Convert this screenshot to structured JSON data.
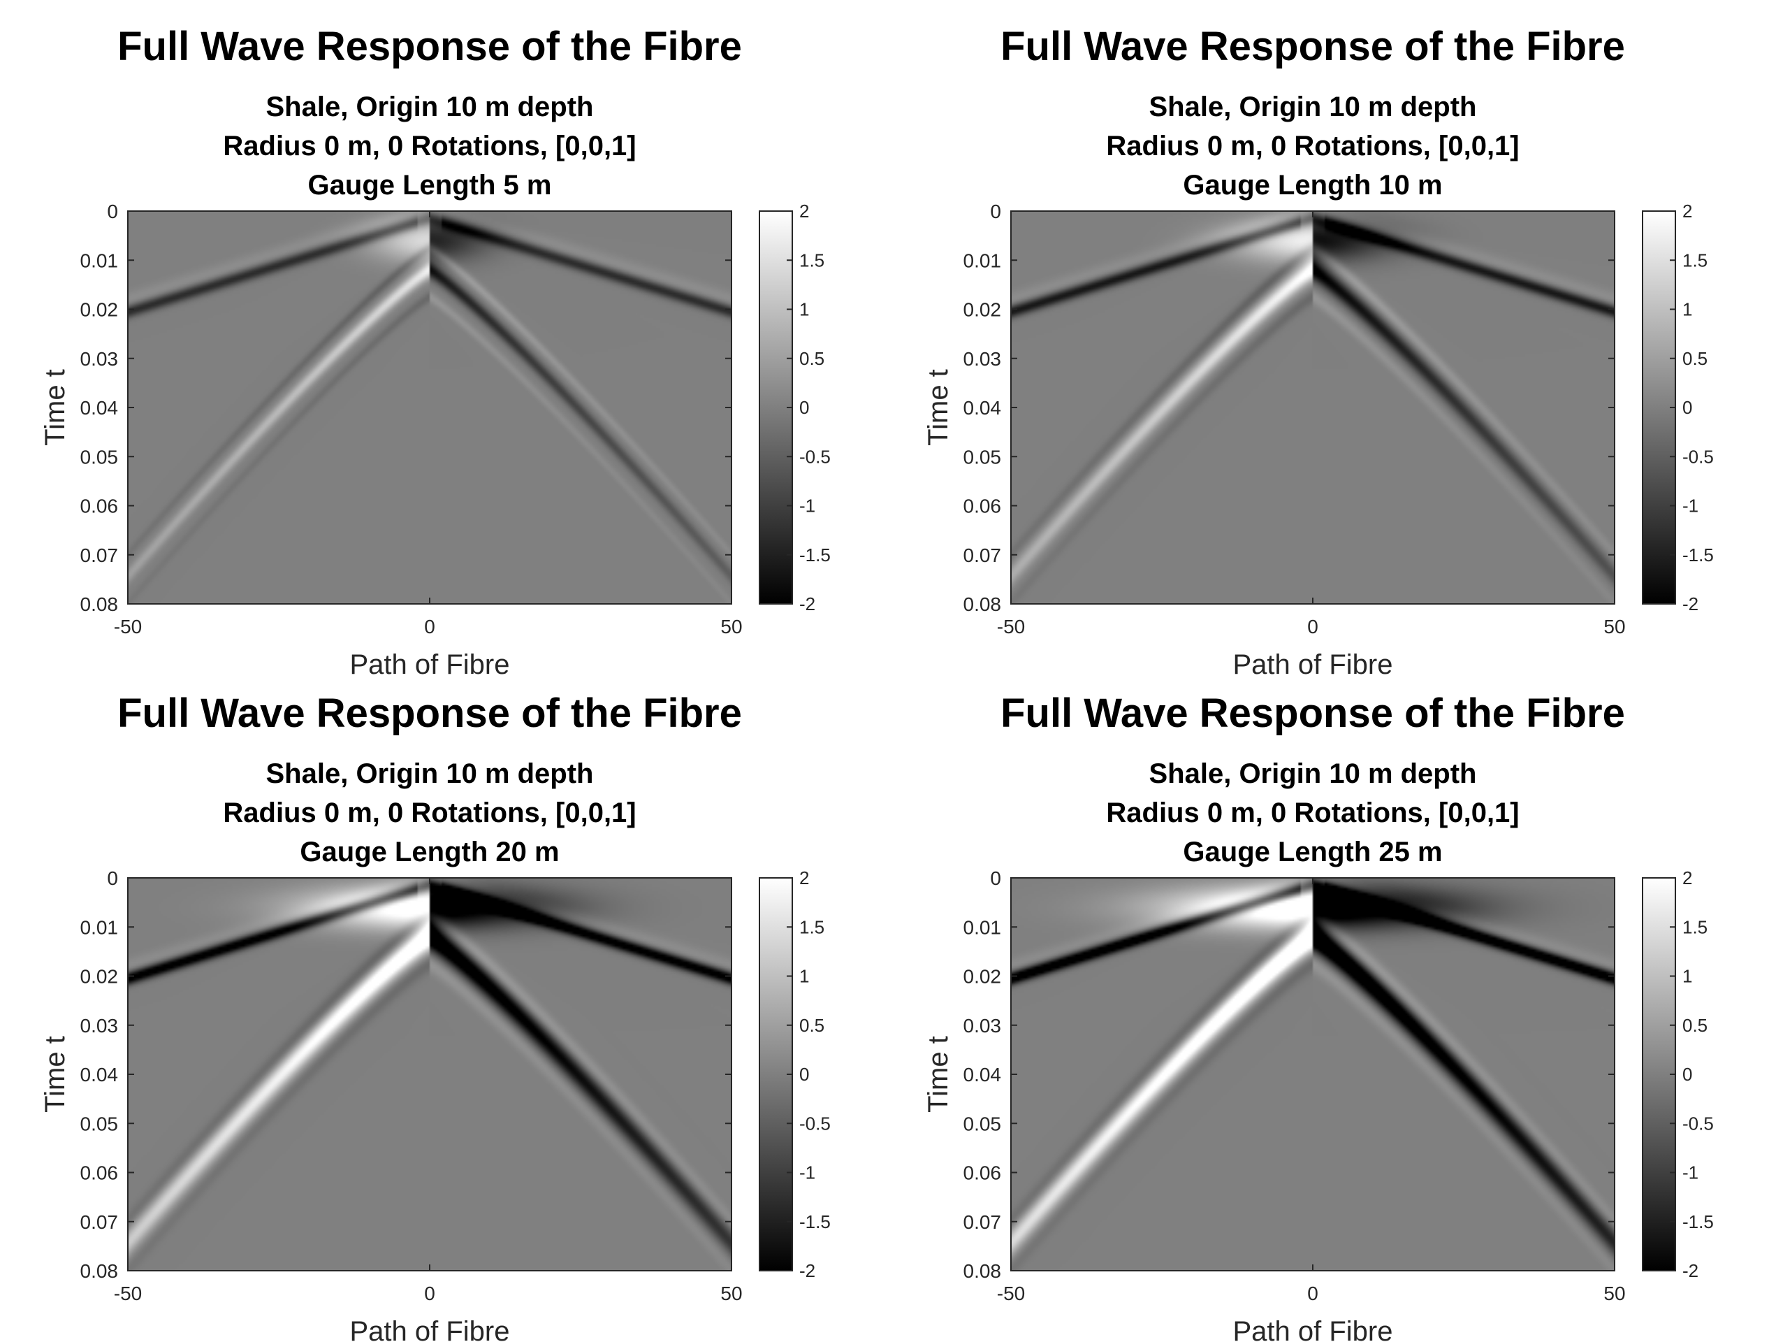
{
  "chart_data": [
    {
      "type": "heatmap",
      "title": "Full Wave Response of the Fibre",
      "subtitle": [
        "Shale, Origin 10 m depth",
        "Radius 0 m, 0 Rotations, [0,0,1]",
        "Gauge Length 5 m"
      ],
      "xlabel": "Path of Fibre",
      "ylabel": "Time t",
      "xlim": [
        -50,
        50
      ],
      "ylim": [
        0,
        0.08
      ],
      "y_reversed": true,
      "xticks": [
        "-50",
        "0",
        "50"
      ],
      "yticks": [
        "0",
        "0.01",
        "0.02",
        "0.03",
        "0.04",
        "0.05",
        "0.06",
        "0.07",
        "0.08"
      ],
      "colorbar": {
        "range": [
          -2,
          2
        ],
        "colormap": "gray",
        "ticks": [
          "2",
          "1.5",
          "1",
          "0.5",
          "0",
          "-0.5",
          "-1",
          "-1.5",
          "-2"
        ]
      },
      "gauge_length_m": 5,
      "grid": false
    },
    {
      "type": "heatmap",
      "title": "Full Wave Response of the Fibre",
      "subtitle": [
        "Shale, Origin 10 m depth",
        "Radius 0 m, 0 Rotations, [0,0,1]",
        "Gauge Length 10 m"
      ],
      "xlabel": "Path of Fibre",
      "ylabel": "Time t",
      "xlim": [
        -50,
        50
      ],
      "ylim": [
        0,
        0.08
      ],
      "y_reversed": true,
      "xticks": [
        "-50",
        "0",
        "50"
      ],
      "yticks": [
        "0",
        "0.01",
        "0.02",
        "0.03",
        "0.04",
        "0.05",
        "0.06",
        "0.07",
        "0.08"
      ],
      "colorbar": {
        "range": [
          -2,
          2
        ],
        "colormap": "gray",
        "ticks": [
          "2",
          "1.5",
          "1",
          "0.5",
          "0",
          "-0.5",
          "-1",
          "-1.5",
          "-2"
        ]
      },
      "gauge_length_m": 10,
      "grid": false
    },
    {
      "type": "heatmap",
      "title": "Full Wave Response of the Fibre",
      "subtitle": [
        "Shale, Origin 10 m depth",
        "Radius 0 m, 0 Rotations, [0,0,1]",
        "Gauge Length 20 m"
      ],
      "xlabel": "Path of Fibre",
      "ylabel": "Time t",
      "xlim": [
        -50,
        50
      ],
      "ylim": [
        0,
        0.08
      ],
      "y_reversed": true,
      "xticks": [
        "-50",
        "0",
        "50"
      ],
      "yticks": [
        "0",
        "0.01",
        "0.02",
        "0.03",
        "0.04",
        "0.05",
        "0.06",
        "0.07",
        "0.08"
      ],
      "colorbar": {
        "range": [
          -2,
          2
        ],
        "colormap": "gray",
        "ticks": [
          "2",
          "1.5",
          "1",
          "0.5",
          "0",
          "-0.5",
          "-1",
          "-1.5",
          "-2"
        ]
      },
      "gauge_length_m": 20,
      "grid": false
    },
    {
      "type": "heatmap",
      "title": "Full Wave Response of the Fibre",
      "subtitle": [
        "Shale, Origin 10 m depth",
        "Radius 0 m, 0 Rotations, [0,0,1]",
        "Gauge Length 25 m"
      ],
      "xlabel": "Path of Fibre",
      "ylabel": "Time t",
      "xlim": [
        -50,
        50
      ],
      "ylim": [
        0,
        0.08
      ],
      "y_reversed": true,
      "xticks": [
        "-50",
        "0",
        "50"
      ],
      "yticks": [
        "0",
        "0.01",
        "0.02",
        "0.03",
        "0.04",
        "0.05",
        "0.06",
        "0.07",
        "0.08"
      ],
      "colorbar": {
        "range": [
          -2,
          2
        ],
        "colormap": "gray",
        "ticks": [
          "2",
          "1.5",
          "1",
          "0.5",
          "0",
          "-0.5",
          "-1",
          "-1.5",
          "-2"
        ]
      },
      "gauge_length_m": 25,
      "grid": false
    }
  ]
}
